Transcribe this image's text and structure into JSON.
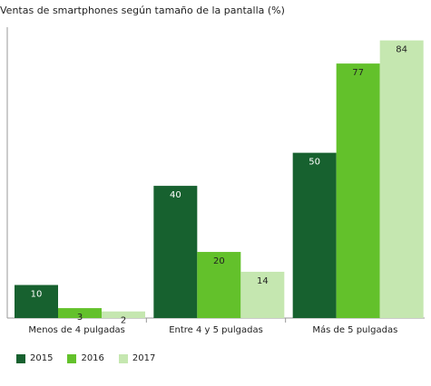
{
  "chart_data": {
    "type": "bar",
    "title": "Ventas de smartphones según tamaño de la pantalla (%)",
    "categories": [
      "Menos de 4 pulgadas",
      "Entre 4 y 5 pulgadas",
      "Más de 5 pulgadas"
    ],
    "series": [
      {
        "name": "2015",
        "values": [
          10,
          40,
          50
        ],
        "color": "#17612f"
      },
      {
        "name": "2016",
        "values": [
          3,
          20,
          77
        ],
        "color": "#63c12b"
      },
      {
        "name": "2017",
        "values": [
          2,
          14,
          84
        ],
        "color": "#c5e7b0"
      }
    ],
    "ylim": [
      0,
      88
    ],
    "label_colors": {
      "2015": "#ffffff",
      "2016": "#222222",
      "2017": "#222222"
    },
    "grid": false,
    "legend_position": "bottom-left"
  }
}
